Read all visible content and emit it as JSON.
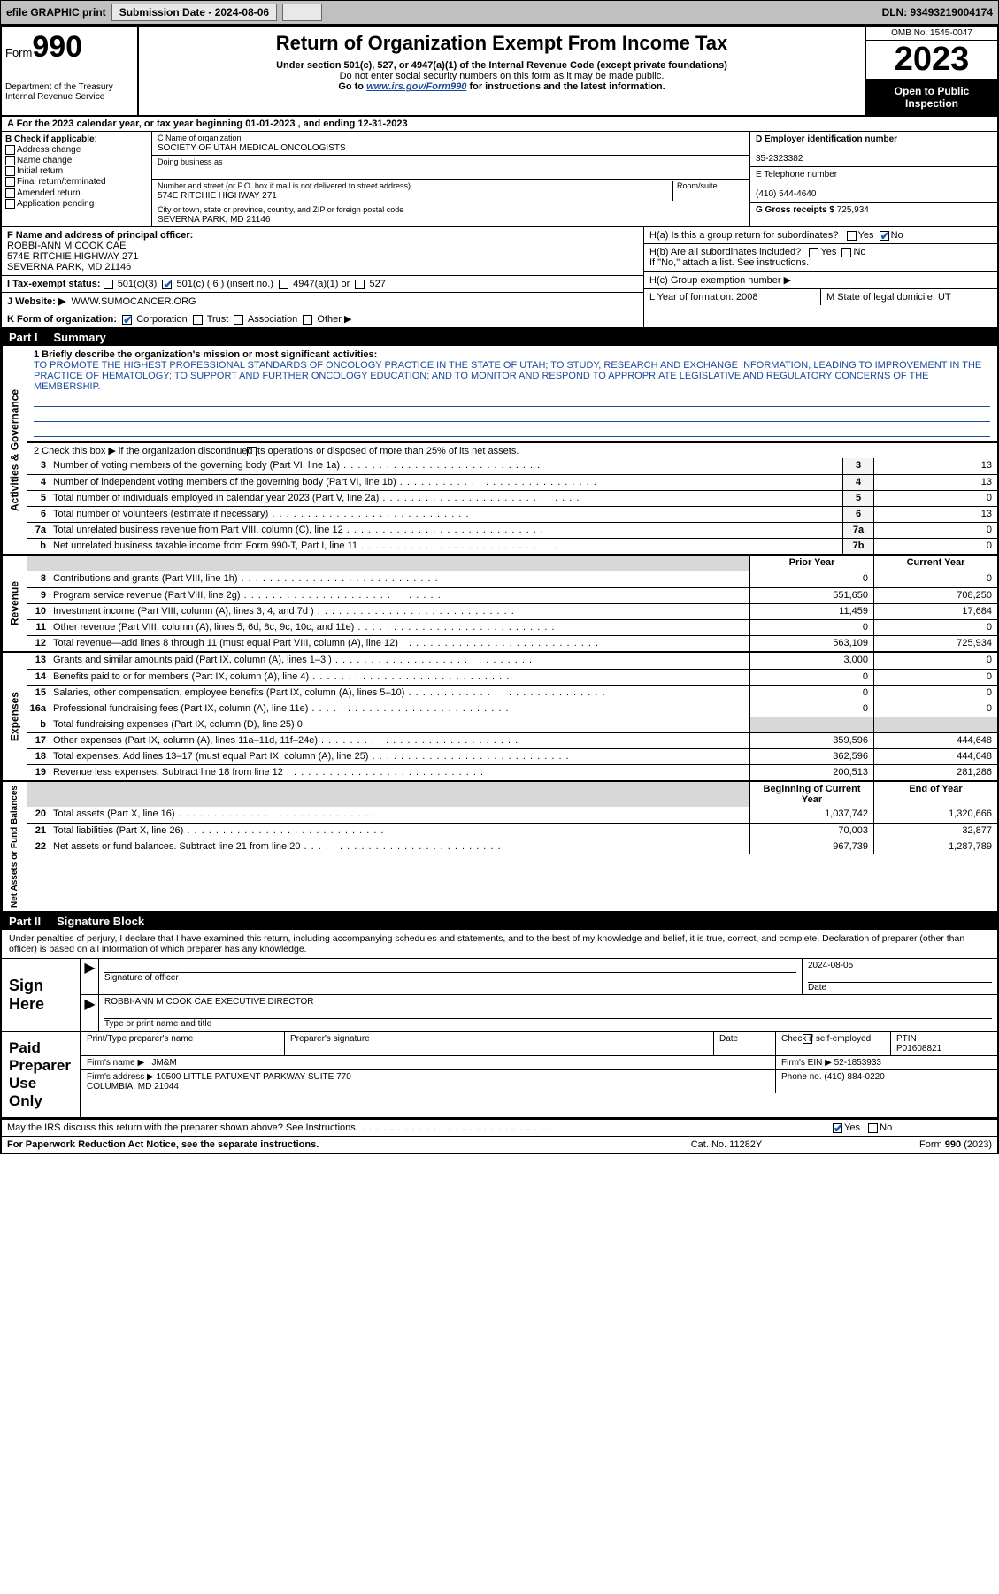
{
  "topbar": {
    "efile_label": "efile GRAPHIC print",
    "submission_label": "Submission Date - 2024-08-06",
    "dln_label": "DLN: 93493219004174"
  },
  "header": {
    "form_word": "Form",
    "form_num": "990",
    "dept": "Department of the Treasury\nInternal Revenue Service",
    "title": "Return of Organization Exempt From Income Tax",
    "subtitle": "Under section 501(c), 527, or 4947(a)(1) of the Internal Revenue Code (except private foundations)",
    "ssn_note": "Do not enter social security numbers on this form as it may be made public.",
    "goto_pre": "Go to ",
    "goto_link": "www.irs.gov/Form990",
    "goto_post": " for instructions and the latest information.",
    "omb": "OMB No. 1545-0047",
    "year": "2023",
    "inspection": "Open to Public Inspection"
  },
  "row_A": "A  For the 2023 calendar year, or tax year beginning 01-01-2023   , and ending 12-31-2023",
  "B": {
    "hdr": "B Check if applicable:",
    "opts": [
      "Address change",
      "Name change",
      "Initial return",
      "Final return/terminated",
      "Amended return",
      "Application pending"
    ]
  },
  "C": {
    "name_lbl": "C Name of organization",
    "name": "SOCIETY OF UTAH MEDICAL ONCOLOGISTS",
    "dba_lbl": "Doing business as",
    "dba": "",
    "street_lbl": "Number and street (or P.O. box if mail is not delivered to street address)",
    "room_lbl": "Room/suite",
    "street": "574E RITCHIE HIGHWAY 271",
    "city_lbl": "City or town, state or province, country, and ZIP or foreign postal code",
    "city": "SEVERNA PARK, MD  21146"
  },
  "D": {
    "lbl": "D Employer identification number",
    "val": "35-2323382"
  },
  "E": {
    "lbl": "E Telephone number",
    "val": "(410) 544-4640"
  },
  "G": {
    "lbl": "G Gross receipts $",
    "val": "725,934"
  },
  "F": {
    "lbl": "F Name and address of principal officer:",
    "name": "ROBBI-ANN M COOK CAE",
    "addr1": "574E RITCHIE HIGHWAY 271",
    "addr2": "SEVERNA PARK, MD  21146"
  },
  "H": {
    "a": "H(a)  Is this a group return for subordinates?",
    "a_yes": "Yes",
    "a_no": "No",
    "b": "H(b)  Are all subordinates included?",
    "b_yes": "Yes",
    "b_no": "No",
    "b_note": "If \"No,\" attach a list. See instructions.",
    "c": "H(c)  Group exemption number ▶"
  },
  "I": {
    "lbl": "I    Tax-exempt status:",
    "o1": "501(c)(3)",
    "o2": "501(c) ( 6 ) (insert no.)",
    "o3": "4947(a)(1) or",
    "o4": "527"
  },
  "J": {
    "lbl": "J    Website: ▶",
    "val": "WWW.SUMOCANCER.ORG"
  },
  "K": {
    "lbl": "K Form of organization:",
    "o1": "Corporation",
    "o2": "Trust",
    "o3": "Association",
    "o4": "Other ▶"
  },
  "L": {
    "lbl": "L Year of formation: 2008"
  },
  "M": {
    "lbl": "M State of legal domicile: UT"
  },
  "part1": {
    "num": "Part I",
    "title": "Summary"
  },
  "mission": {
    "q": "1   Briefly describe the organization's mission or most significant activities:",
    "txt": "TO PROMOTE THE HIGHEST PROFESSIONAL STANDARDS OF ONCOLOGY PRACTICE IN THE STATE OF UTAH; TO STUDY, RESEARCH AND EXCHANGE INFORMATION, LEADING TO IMPROVEMENT IN THE PRACTICE OF HEMATOLOGY; TO SUPPORT AND FURTHER ONCOLOGY EDUCATION; AND TO MONITOR AND RESPOND TO APPROPRIATE LEGISLATIVE AND REGULATORY CONCERNS OF THE MEMBERSHIP."
  },
  "gov": {
    "side": "Activities & Governance",
    "line2": "2   Check this box ▶       if the organization discontinued its operations or disposed of more than 25% of its net assets.",
    "lines": [
      {
        "n": "3",
        "t": "Number of voting members of the governing body (Part VI, line 1a)",
        "b": "3",
        "v": "13"
      },
      {
        "n": "4",
        "t": "Number of independent voting members of the governing body (Part VI, line 1b)",
        "b": "4",
        "v": "13"
      },
      {
        "n": "5",
        "t": "Total number of individuals employed in calendar year 2023 (Part V, line 2a)",
        "b": "5",
        "v": "0"
      },
      {
        "n": "6",
        "t": "Total number of volunteers (estimate if necessary)",
        "b": "6",
        "v": "13"
      },
      {
        "n": "7a",
        "t": "Total unrelated business revenue from Part VIII, column (C), line 12",
        "b": "7a",
        "v": "0"
      },
      {
        "n": "b",
        "t": "Net unrelated business taxable income from Form 990-T, Part I, line 11",
        "b": "7b",
        "v": "0"
      }
    ]
  },
  "cols": {
    "prior": "Prior Year",
    "current": "Current Year",
    "boy": "Beginning of Current Year",
    "eoy": "End of Year"
  },
  "rev": {
    "side": "Revenue",
    "lines": [
      {
        "n": "8",
        "t": "Contributions and grants (Part VIII, line 1h)",
        "p": "0",
        "c": "0"
      },
      {
        "n": "9",
        "t": "Program service revenue (Part VIII, line 2g)",
        "p": "551,650",
        "c": "708,250"
      },
      {
        "n": "10",
        "t": "Investment income (Part VIII, column (A), lines 3, 4, and 7d )",
        "p": "11,459",
        "c": "17,684"
      },
      {
        "n": "11",
        "t": "Other revenue (Part VIII, column (A), lines 5, 6d, 8c, 9c, 10c, and 11e)",
        "p": "0",
        "c": "0"
      },
      {
        "n": "12",
        "t": "Total revenue—add lines 8 through 11 (must equal Part VIII, column (A), line 12)",
        "p": "563,109",
        "c": "725,934"
      }
    ]
  },
  "exp": {
    "side": "Expenses",
    "lines": [
      {
        "n": "13",
        "t": "Grants and similar amounts paid (Part IX, column (A), lines 1–3 )",
        "p": "3,000",
        "c": "0"
      },
      {
        "n": "14",
        "t": "Benefits paid to or for members (Part IX, column (A), line 4)",
        "p": "0",
        "c": "0"
      },
      {
        "n": "15",
        "t": "Salaries, other compensation, employee benefits (Part IX, column (A), lines 5–10)",
        "p": "0",
        "c": "0"
      },
      {
        "n": "16a",
        "t": "Professional fundraising fees (Part IX, column (A), line 11e)",
        "p": "0",
        "c": "0"
      },
      {
        "n": "b",
        "t": "Total fundraising expenses (Part IX, column (D), line 25) 0",
        "p": "",
        "c": "",
        "shaded": true
      },
      {
        "n": "17",
        "t": "Other expenses (Part IX, column (A), lines 11a–11d, 11f–24e)",
        "p": "359,596",
        "c": "444,648"
      },
      {
        "n": "18",
        "t": "Total expenses. Add lines 13–17 (must equal Part IX, column (A), line 25)",
        "p": "362,596",
        "c": "444,648"
      },
      {
        "n": "19",
        "t": "Revenue less expenses. Subtract line 18 from line 12",
        "p": "200,513",
        "c": "281,286"
      }
    ]
  },
  "net": {
    "side": "Net Assets or Fund Balances",
    "lines": [
      {
        "n": "20",
        "t": "Total assets (Part X, line 16)",
        "p": "1,037,742",
        "c": "1,320,666"
      },
      {
        "n": "21",
        "t": "Total liabilities (Part X, line 26)",
        "p": "70,003",
        "c": "32,877"
      },
      {
        "n": "22",
        "t": "Net assets or fund balances. Subtract line 21 from line 20",
        "p": "967,739",
        "c": "1,287,789"
      }
    ]
  },
  "part2": {
    "num": "Part II",
    "title": "Signature Block"
  },
  "perjury": "Under penalties of perjury, I declare that I have examined this return, including accompanying schedules and statements, and to the best of my knowledge and belief, it is true, correct, and complete. Declaration of preparer (other than officer) is based on all information of which preparer has any knowledge.",
  "sign": {
    "here": "Sign Here",
    "sig_lbl": "Signature of officer",
    "date_lbl": "Date",
    "date_val": "2024-08-05",
    "name": "ROBBI-ANN M COOK CAE  EXECUTIVE DIRECTOR",
    "name_lbl": "Type or print name and title"
  },
  "preparer": {
    "lbl": "Paid Preparer Use Only",
    "col1": "Print/Type preparer's name",
    "col2": "Preparer's signature",
    "col3": "Date",
    "col4a": "Check         if self-employed",
    "col5_lbl": "PTIN",
    "col5_val": "P01608821",
    "firm_lbl": "Firm's name    ▶",
    "firm_val": "JM&M",
    "ein_lbl": "Firm's EIN ▶",
    "ein_val": "52-1853933",
    "addr_lbl": "Firm's address ▶",
    "addr_val": "10500 LITTLE PATUXENT PARKWAY SUITE 770\nCOLUMBIA, MD  21044",
    "phone_lbl": "Phone no.",
    "phone_val": "(410) 884-0220"
  },
  "discuss": {
    "q": "May the IRS discuss this return with the preparer shown above? See Instructions.",
    "yes": "Yes",
    "no": "No"
  },
  "footer": {
    "left": "For Paperwork Reduction Act Notice, see the separate instructions.",
    "mid": "Cat. No. 11282Y",
    "right": "Form 990 (2023)"
  }
}
